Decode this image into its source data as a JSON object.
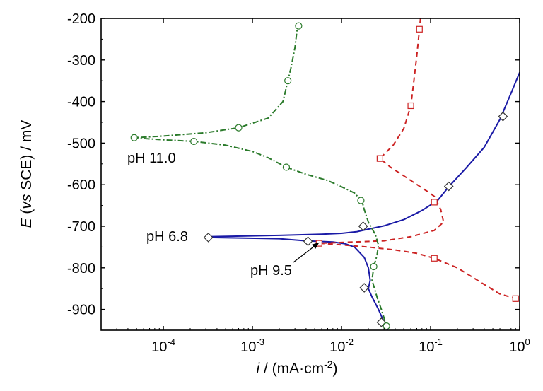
{
  "chart_data": {
    "type": "line",
    "title": "",
    "xlabel": "i / (mA·cm-2)",
    "ylabel": "E (vs SCE) / mV",
    "x_scale": "log",
    "xlim": [
      2e-05,
      1.0
    ],
    "ylim": [
      -950,
      -200
    ],
    "x_ticks": [
      0.0001,
      0.001,
      0.01,
      0.1,
      1
    ],
    "x_tick_labels": [
      {
        "base": "10",
        "exp": "-4"
      },
      {
        "base": "10",
        "exp": "-3"
      },
      {
        "base": "10",
        "exp": "-2"
      },
      {
        "base": "10",
        "exp": "-1"
      },
      {
        "base": "10",
        "exp": "0"
      }
    ],
    "y_ticks": [
      -200,
      -300,
      -400,
      -500,
      -600,
      -700,
      -800,
      -900
    ],
    "y_tick_labels": [
      "-200",
      "-300",
      "-400",
      "-500",
      "-600",
      "-700",
      "-800",
      "-900"
    ],
    "grid": false,
    "series": [
      {
        "name": "pH 6.8",
        "color": "#1a1aa6",
        "line_style": "solid",
        "marker": "diamond",
        "curve": [
          [
            0.00032,
            -725
          ],
          [
            0.002,
            -722
          ],
          [
            0.006,
            -719
          ],
          [
            0.01,
            -717
          ],
          [
            0.015,
            -713
          ],
          [
            0.02,
            -707
          ],
          [
            0.03,
            -699
          ],
          [
            0.05,
            -684
          ],
          [
            0.08,
            -662
          ],
          [
            0.12,
            -638
          ],
          [
            0.16,
            -605
          ],
          [
            0.25,
            -560
          ],
          [
            0.4,
            -510
          ],
          [
            0.6,
            -443
          ],
          [
            0.8,
            -380
          ],
          [
            1.0,
            -330
          ]
        ],
        "cathodic": [
          [
            0.00032,
            -727
          ],
          [
            0.002,
            -730
          ],
          [
            0.004,
            -735
          ],
          [
            0.008,
            -738
          ],
          [
            0.011,
            -742
          ],
          [
            0.014,
            -750
          ],
          [
            0.018,
            -775
          ],
          [
            0.02,
            -800
          ],
          [
            0.021,
            -830
          ],
          [
            0.02,
            -850
          ],
          [
            0.022,
            -870
          ],
          [
            0.026,
            -900
          ],
          [
            0.03,
            -930
          ],
          [
            0.033,
            -950
          ]
        ],
        "markers": [
          [
            0.00032,
            -727
          ],
          [
            0.0042,
            -736
          ],
          [
            0.0175,
            -700
          ],
          [
            0.16,
            -604
          ],
          [
            0.65,
            -436
          ],
          [
            0.018,
            -848
          ],
          [
            0.028,
            -931
          ]
        ]
      },
      {
        "name": "pH 9.5",
        "color": "#cc2222",
        "line_style": "dashed",
        "marker": "square",
        "curve": [
          [
            0.077,
            -200
          ],
          [
            0.075,
            -226
          ],
          [
            0.07,
            -290
          ],
          [
            0.065,
            -350
          ],
          [
            0.06,
            -410
          ],
          [
            0.05,
            -465
          ],
          [
            0.038,
            -505
          ],
          [
            0.027,
            -537
          ],
          [
            0.035,
            -557
          ],
          [
            0.06,
            -590
          ],
          [
            0.09,
            -615
          ],
          [
            0.11,
            -628
          ],
          [
            0.13,
            -660
          ],
          [
            0.14,
            -690
          ],
          [
            0.11,
            -710
          ],
          [
            0.06,
            -725
          ],
          [
            0.03,
            -735
          ],
          [
            0.0056,
            -741
          ],
          [
            0.008,
            -743
          ],
          [
            0.02,
            -750
          ],
          [
            0.04,
            -757
          ],
          [
            0.07,
            -765
          ],
          [
            0.11,
            -777
          ],
          [
            0.2,
            -800
          ],
          [
            0.4,
            -840
          ],
          [
            0.6,
            -863
          ],
          [
            0.95,
            -875
          ]
        ],
        "markers": [
          [
            0.075,
            -226
          ],
          [
            0.06,
            -410
          ],
          [
            0.027,
            -537
          ],
          [
            0.11,
            -642
          ],
          [
            0.0056,
            -741
          ],
          [
            0.11,
            -777
          ],
          [
            0.9,
            -874
          ]
        ]
      },
      {
        "name": "pH 11.0",
        "color": "#2a7a2a",
        "line_style": "dash-dot",
        "marker": "circle",
        "curve": [
          [
            0.0033,
            -210
          ],
          [
            0.0032,
            -220
          ],
          [
            0.003,
            -270
          ],
          [
            0.0027,
            -320
          ],
          [
            0.0025,
            -350
          ],
          [
            0.0022,
            -400
          ],
          [
            0.0015,
            -440
          ],
          [
            0.0007,
            -463
          ],
          [
            0.0003,
            -475
          ],
          [
            0.0001,
            -483
          ],
          [
            4.7e-05,
            -487
          ],
          [
            6e-05,
            -489
          ],
          [
            0.0001,
            -492
          ],
          [
            0.00022,
            -496
          ],
          [
            0.0005,
            -505
          ],
          [
            0.001,
            -520
          ],
          [
            0.0015,
            -535
          ],
          [
            0.0024,
            -558
          ],
          [
            0.004,
            -575
          ],
          [
            0.007,
            -590
          ],
          [
            0.01,
            -605
          ],
          [
            0.014,
            -620
          ],
          [
            0.017,
            -640
          ],
          [
            0.018,
            -660
          ],
          [
            0.02,
            -690
          ],
          [
            0.024,
            -720
          ],
          [
            0.026,
            -745
          ],
          [
            0.025,
            -770
          ],
          [
            0.023,
            -797
          ],
          [
            0.022,
            -830
          ],
          [
            0.025,
            -870
          ],
          [
            0.028,
            -900
          ],
          [
            0.031,
            -930
          ],
          [
            0.032,
            -940
          ]
        ],
        "markers": [
          [
            0.0033,
            -218
          ],
          [
            0.0025,
            -350
          ],
          [
            0.0007,
            -463
          ],
          [
            4.7e-05,
            -487
          ],
          [
            0.00022,
            -496
          ],
          [
            0.0024,
            -558
          ],
          [
            0.0165,
            -638
          ],
          [
            0.023,
            -797
          ],
          [
            0.032,
            -940
          ]
        ]
      }
    ],
    "annotations": [
      {
        "text": "pH 11.0",
        "series": "pH 11.0"
      },
      {
        "text": "pH 6.8",
        "series": "pH 6.8"
      },
      {
        "text": "pH 9.5",
        "series": "pH 9.5",
        "arrow": true
      }
    ]
  }
}
